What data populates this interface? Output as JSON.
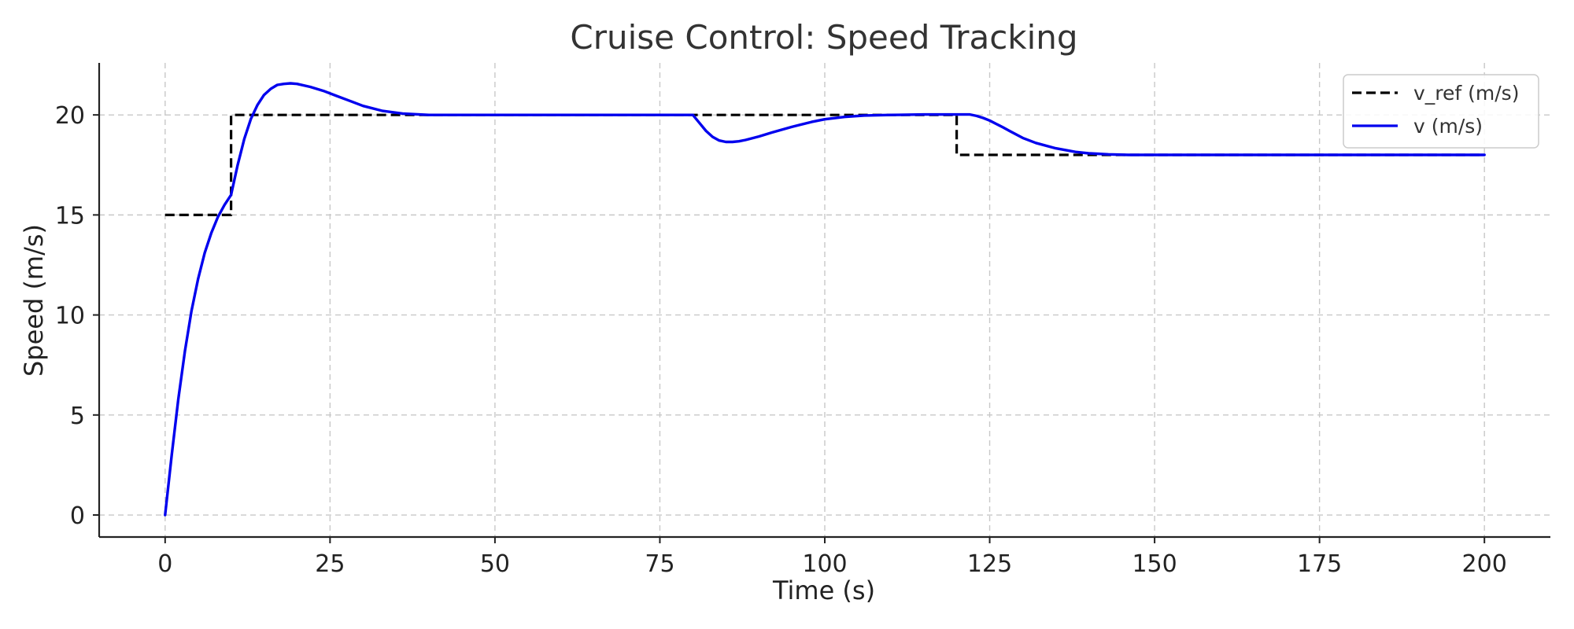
{
  "chart_data": {
    "type": "line",
    "title": "Cruise Control: Speed Tracking",
    "xlabel": "Time (s)",
    "ylabel": "Speed (m/s)",
    "xlim": [
      -10,
      210
    ],
    "ylim": [
      -1.1,
      22.6
    ],
    "xticks": [
      0,
      25,
      50,
      75,
      100,
      125,
      150,
      175,
      200
    ],
    "yticks": [
      0,
      5,
      10,
      15,
      20
    ],
    "grid": true,
    "legend_position": "top-right",
    "series": [
      {
        "name": "v_ref (m/s)",
        "style": "dashed",
        "color": "#000000",
        "x": [
          0,
          10,
          10,
          120,
          120,
          200
        ],
        "y": [
          15,
          15,
          20,
          20,
          18,
          18
        ]
      },
      {
        "name": "v (m/s)",
        "style": "solid",
        "color": "#0000ee",
        "x": [
          0,
          1,
          2,
          3,
          4,
          5,
          6,
          7,
          8,
          9,
          10,
          11,
          12,
          13,
          14,
          15,
          16,
          17,
          18,
          19,
          20,
          22,
          24,
          26,
          28,
          30,
          33,
          36,
          40,
          45,
          50,
          60,
          70,
          78,
          80,
          81,
          82,
          83,
          84,
          85,
          86,
          87,
          88,
          90,
          92,
          95,
          98,
          100,
          103,
          106,
          110,
          115,
          120,
          121,
          122,
          123,
          124,
          125,
          126,
          127,
          128,
          130,
          132,
          135,
          138,
          140,
          143,
          146,
          150,
          160,
          175,
          190,
          200
        ],
        "y": [
          0,
          3.0,
          5.8,
          8.2,
          10.2,
          11.8,
          13.1,
          14.1,
          14.9,
          15.5,
          16.0,
          17.5,
          18.8,
          19.8,
          20.5,
          21.0,
          21.3,
          21.5,
          21.55,
          21.58,
          21.55,
          21.4,
          21.2,
          20.95,
          20.7,
          20.45,
          20.2,
          20.07,
          20.0,
          20.0,
          20.0,
          20.0,
          20.0,
          20.0,
          20.0,
          19.6,
          19.2,
          18.9,
          18.72,
          18.65,
          18.65,
          18.68,
          18.75,
          18.92,
          19.12,
          19.4,
          19.65,
          19.78,
          19.9,
          19.97,
          20.0,
          20.02,
          20.02,
          20.02,
          20.02,
          19.95,
          19.85,
          19.72,
          19.55,
          19.38,
          19.2,
          18.85,
          18.6,
          18.33,
          18.15,
          18.08,
          18.03,
          18.0,
          18.0,
          18.0,
          18.0,
          18.0,
          18.0
        ]
      }
    ]
  }
}
